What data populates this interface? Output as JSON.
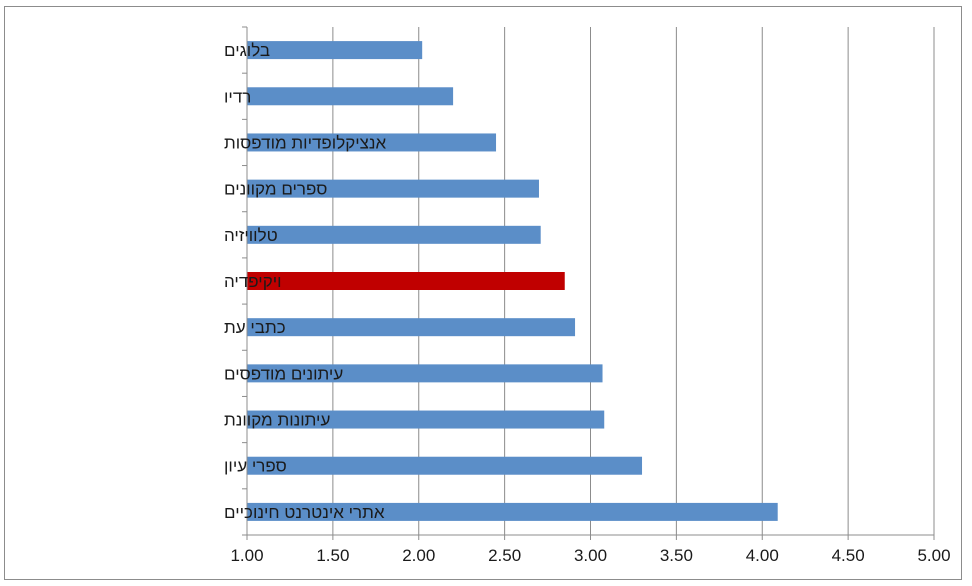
{
  "chart_data": {
    "type": "bar",
    "orientation": "horizontal",
    "title": "",
    "xlabel": "",
    "ylabel": "",
    "xlim": [
      1.0,
      5.0
    ],
    "x_ticks": [
      "1.00",
      "1.50",
      "2.00",
      "2.50",
      "3.00",
      "3.50",
      "4.00",
      "4.50",
      "5.00"
    ],
    "x_tick_values": [
      1.0,
      1.5,
      2.0,
      2.5,
      3.0,
      3.5,
      4.0,
      4.5,
      5.0
    ],
    "grid": "vertical",
    "legend": "none",
    "categories": [
      "בלוגים",
      "רדיו",
      "אנציקלופדיות מודפסות",
      "ספרים מקוונים",
      "טלוויזיה",
      "ויקיפדיה",
      "כתבי עת",
      "עיתונים מודפסים",
      "עיתונות מקוונת",
      "ספרי עיון",
      "אתרי אינטרנט חינוכיים"
    ],
    "values": [
      2.02,
      2.2,
      2.45,
      2.7,
      2.71,
      2.85,
      2.91,
      3.07,
      3.08,
      3.3,
      4.09
    ],
    "colors": {
      "default": "#5b8ec8",
      "highlight": "#c00000",
      "gridline": "#8c8c8c",
      "axis": "#8c8c8c"
    },
    "highlight_category": "ויקיפדיה"
  }
}
